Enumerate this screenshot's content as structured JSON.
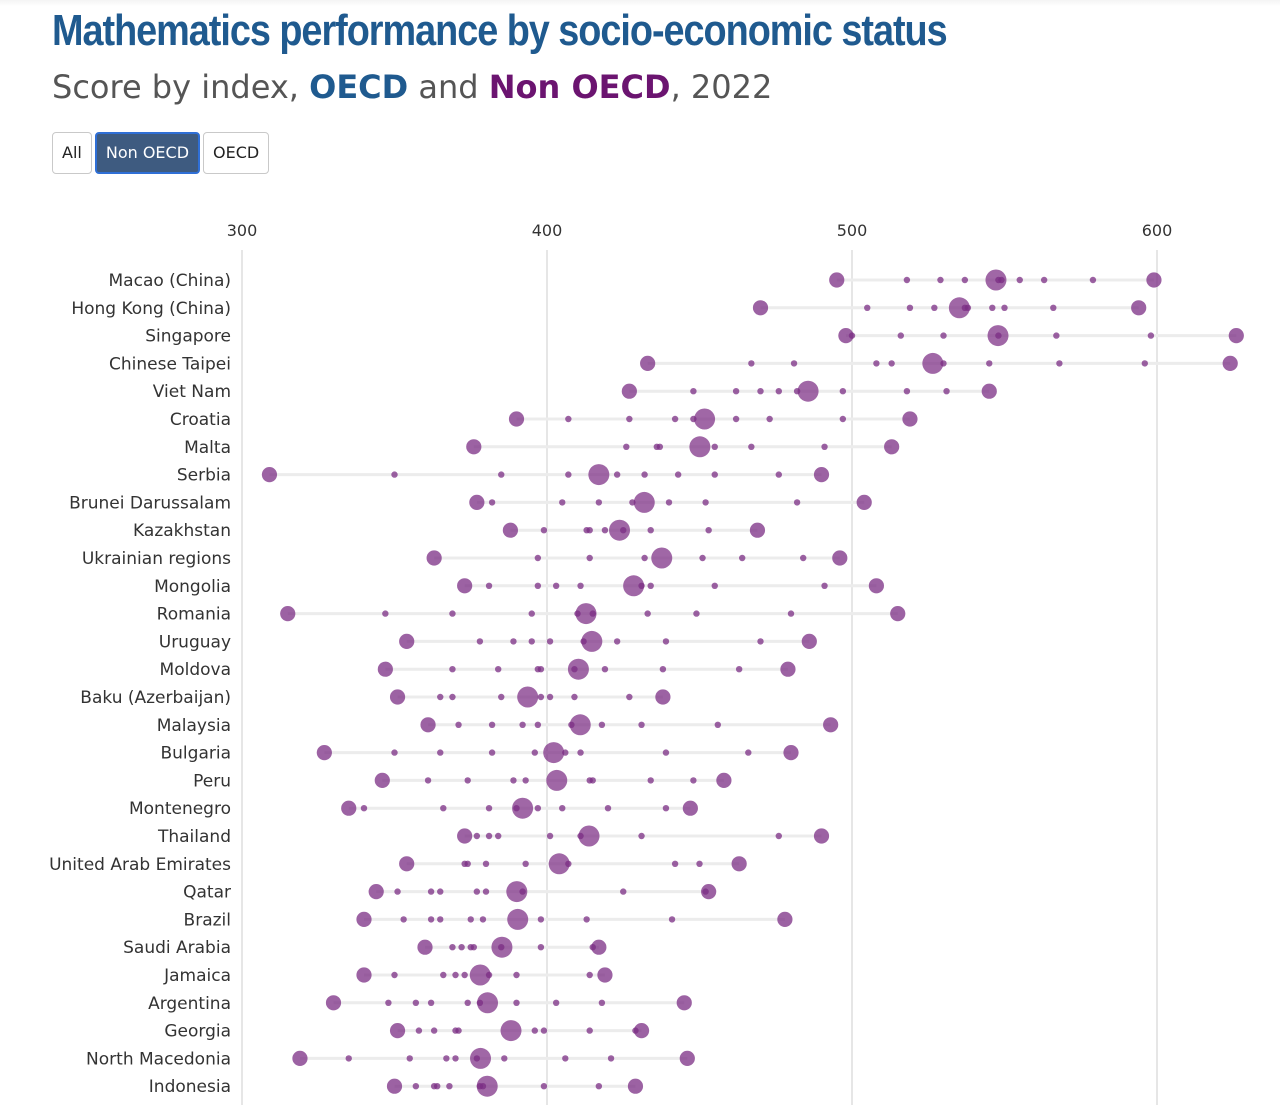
{
  "title": "Mathematics performance by socio-economic status",
  "subtitle": {
    "prefix": "Score by index, ",
    "oecd": "OECD",
    "middle": " and ",
    "non_oecd": "Non OECD",
    "suffix": ", 2022"
  },
  "colors": {
    "title": "#1f5a8f",
    "oecd": "#1f5a8f",
    "non_oecd": "#6b1470",
    "dot": "#7b2d84",
    "active_button": "#3e5b80"
  },
  "filters": [
    {
      "label": "All",
      "active": false
    },
    {
      "label": "Non OECD",
      "active": true
    },
    {
      "label": "OECD",
      "active": false
    }
  ],
  "chart_data": {
    "type": "scatter",
    "x_axis": {
      "ticks": [
        300,
        400,
        500,
        600
      ],
      "range": [
        300,
        630
      ],
      "position": "top",
      "grid": true
    },
    "countries": [
      {
        "name": "Macao (China)",
        "scores": [
          495,
          518,
          529,
          537,
          548,
          549,
          555,
          563,
          579,
          599
        ]
      },
      {
        "name": "Hong Kong (China)",
        "scores": [
          470,
          505,
          519,
          527,
          537,
          538,
          546,
          550,
          566,
          594
        ]
      },
      {
        "name": "Singapore",
        "scores": [
          498,
          500,
          516,
          530,
          548,
          567,
          598,
          626
        ]
      },
      {
        "name": "Chinese Taipei",
        "scores": [
          433,
          467,
          481,
          508,
          513,
          530,
          545,
          568,
          596,
          624
        ]
      },
      {
        "name": "Viet Nam",
        "scores": [
          427,
          448,
          462,
          470,
          476,
          482,
          497,
          518,
          531,
          545
        ]
      },
      {
        "name": "Croatia",
        "scores": [
          390,
          407,
          427,
          442,
          448,
          462,
          473,
          497,
          519
        ]
      },
      {
        "name": "Malta",
        "scores": [
          376,
          426,
          436,
          437,
          455,
          467,
          491,
          513
        ]
      },
      {
        "name": "Serbia",
        "scores": [
          309,
          350,
          385,
          407,
          423,
          432,
          443,
          455,
          476,
          490
        ]
      },
      {
        "name": "Brunei Darussalam",
        "scores": [
          377,
          382,
          405,
          417,
          428,
          440,
          452,
          482,
          504
        ]
      },
      {
        "name": "Kazakhstan",
        "scores": [
          388,
          399,
          413,
          414,
          419,
          425,
          434,
          453,
          469
        ]
      },
      {
        "name": "Ukrainian regions",
        "scores": [
          363,
          397,
          414,
          432,
          451,
          464,
          484,
          496
        ]
      },
      {
        "name": "Mongolia",
        "scores": [
          373,
          381,
          397,
          403,
          411,
          431,
          434,
          455,
          491,
          508
        ]
      },
      {
        "name": "Romania",
        "scores": [
          315,
          347,
          369,
          395,
          410,
          415,
          433,
          449,
          480,
          515
        ]
      },
      {
        "name": "Uruguay",
        "scores": [
          354,
          378,
          389,
          395,
          401,
          412,
          423,
          439,
          470,
          486
        ]
      },
      {
        "name": "Moldova",
        "scores": [
          347,
          369,
          384,
          397,
          398,
          409,
          419,
          438,
          463,
          479
        ]
      },
      {
        "name": "Baku (Azerbaijan)",
        "scores": [
          351,
          365,
          369,
          385,
          398,
          401,
          409,
          427,
          438
        ]
      },
      {
        "name": "Malaysia",
        "scores": [
          361,
          371,
          382,
          392,
          397,
          408,
          418,
          431,
          456,
          493
        ]
      },
      {
        "name": "Bulgaria",
        "scores": [
          327,
          350,
          365,
          382,
          396,
          406,
          411,
          439,
          466,
          480
        ]
      },
      {
        "name": "Peru",
        "scores": [
          346,
          361,
          374,
          389,
          393,
          414,
          415,
          434,
          448,
          458
        ]
      },
      {
        "name": "Montenegro",
        "scores": [
          335,
          340,
          366,
          381,
          390,
          397,
          405,
          420,
          439,
          447
        ]
      },
      {
        "name": "Thailand",
        "scores": [
          373,
          377,
          381,
          384,
          401,
          411,
          431,
          476,
          490
        ]
      },
      {
        "name": "United Arab Emirates",
        "scores": [
          354,
          373,
          374,
          380,
          393,
          407,
          442,
          450,
          463
        ]
      },
      {
        "name": "Qatar",
        "scores": [
          344,
          351,
          362,
          365,
          377,
          380,
          392,
          425,
          452,
          453
        ]
      },
      {
        "name": "Brazil",
        "scores": [
          340,
          353,
          362,
          365,
          375,
          379,
          398,
          413,
          441,
          478
        ]
      },
      {
        "name": "Saudi Arabia",
        "scores": [
          360,
          369,
          372,
          375,
          376,
          385,
          398,
          415,
          417
        ]
      },
      {
        "name": "Jamaica",
        "scores": [
          340,
          350,
          366,
          370,
          373,
          381,
          390,
          414,
          419
        ]
      },
      {
        "name": "Argentina",
        "scores": [
          330,
          348,
          357,
          362,
          374,
          378,
          390,
          403,
          418,
          445
        ]
      },
      {
        "name": "Georgia",
        "scores": [
          351,
          358,
          363,
          370,
          371,
          396,
          399,
          414,
          429,
          431
        ]
      },
      {
        "name": "North Macedonia",
        "scores": [
          319,
          335,
          355,
          367,
          370,
          377,
          386,
          406,
          421,
          446
        ]
      },
      {
        "name": "Indonesia",
        "scores": [
          350,
          357,
          363,
          364,
          368,
          378,
          379,
          399,
          417,
          429
        ]
      }
    ]
  }
}
